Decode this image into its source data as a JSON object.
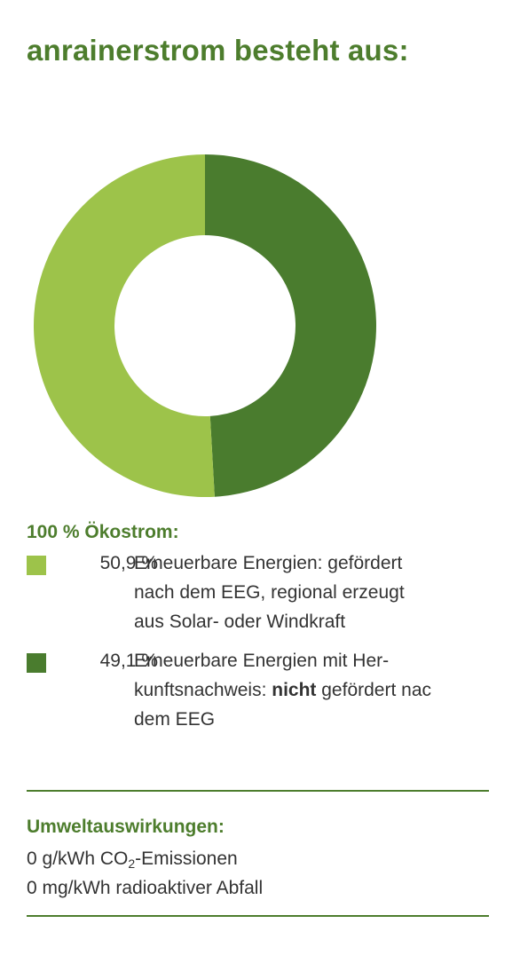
{
  "title": {
    "brand_bold": "anrainer",
    "brand_rest": "strom besteht aus:"
  },
  "colors": {
    "light_green": "#9dc34a",
    "dark_green": "#4a7c2e",
    "heading_green": "#4d7d2d"
  },
  "chart_data": {
    "type": "pie",
    "title": "",
    "series": [
      {
        "value": 49.1,
        "color": "#4a7c2e"
      },
      {
        "value": 50.9,
        "color": "#9dc34a"
      }
    ]
  },
  "legend": {
    "heading": "100 % Ökostrom:",
    "items": [
      {
        "value": "50,9 %",
        "color": "#9dc34a",
        "line1": "Erneuerbare Energien: gefördert",
        "line2": "nach dem EEG, regional erzeugt",
        "line3": "aus Solar- oder Windkraft"
      },
      {
        "value": "49,1 %",
        "color": "#4a7c2e",
        "line1": "Erneuerbare Energien mit Her-",
        "line2_pre": "kunftsnachweis: ",
        "line2_bold": "nicht",
        "line2_post": " gefördert nac",
        "line3": "dem EEG"
      }
    ]
  },
  "impact": {
    "heading": "Umweltauswirkungen:",
    "line1_pre": "0 g/kWh CO",
    "line1_sub": "2",
    "line1_post": "-Emissionen",
    "line2": "0 mg/kWh radioaktiver Abfall"
  }
}
